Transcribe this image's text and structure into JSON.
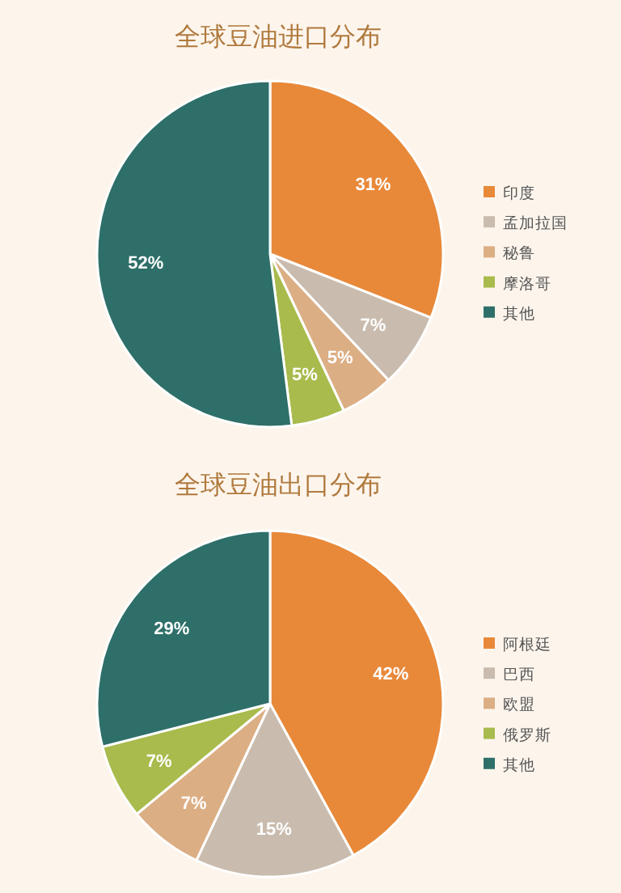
{
  "chart_data": [
    {
      "type": "pie",
      "title": "全球豆油进口分布",
      "categories": [
        "印度",
        "孟加拉国",
        "秘鲁",
        "摩洛哥",
        "其他"
      ],
      "values": [
        31,
        7,
        5,
        5,
        52
      ],
      "value_labels": [
        "31%",
        "7%",
        "5%",
        "5%",
        "52%"
      ],
      "colors": [
        "#e8893a",
        "#c9bcae",
        "#dcae84",
        "#a8bb4c",
        "#2e6f69"
      ],
      "legend": "right"
    },
    {
      "type": "pie",
      "title": "全球豆油出口分布",
      "categories": [
        "阿根廷",
        "巴西",
        "欧盟",
        "俄罗斯",
        "其他"
      ],
      "values": [
        42,
        15,
        7,
        7,
        29
      ],
      "value_labels": [
        "42%",
        "15%",
        "7%",
        "7%",
        "29%"
      ],
      "colors": [
        "#e8893a",
        "#c9bcae",
        "#dcae84",
        "#a8bb4c",
        "#2e6f69"
      ],
      "legend": "right"
    }
  ]
}
